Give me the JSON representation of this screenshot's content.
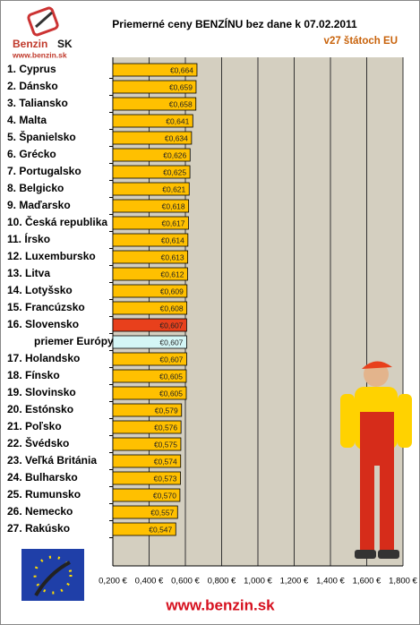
{
  "chart_data": {
    "type": "bar",
    "orientation": "horizontal",
    "title": "Priemerné ceny BENZÍNU bez dane k 07.02.2011",
    "subtitle": "v27 štátoch EU",
    "logo_text": "Benzin",
    "logo_suffix": "SK",
    "logo_url": "www.benzin.sk",
    "footer": "www.benzin.sk",
    "categories": [
      "1. Cyprus",
      "2. Dánsko",
      "3. Taliansko",
      "4. Malta",
      "5. Španielsko",
      "6. Grécko",
      "7. Portugalsko",
      "8. Belgicko",
      "9. Maďarsko",
      "10. Česká republika",
      "11. Írsko",
      "12. Luxembursko",
      "13. Litva",
      "14. Lotyšsko",
      "15. Francúzsko",
      "16. Slovensko",
      "priemer Európy",
      "17. Holandsko",
      "18. Fínsko",
      "19. Slovinsko",
      "20. Estónsko",
      "21. Poľsko",
      "22. Švédsko",
      "23. Veľká Británia",
      "24. Bulharsko",
      "25. Rumunsko",
      "26. Nemecko",
      "27. Rakúsko"
    ],
    "values": [
      0.664,
      0.659,
      0.658,
      0.641,
      0.634,
      0.626,
      0.625,
      0.621,
      0.618,
      0.617,
      0.614,
      0.613,
      0.612,
      0.609,
      0.608,
      0.607,
      0.607,
      0.607,
      0.605,
      0.605,
      0.579,
      0.576,
      0.575,
      0.574,
      0.573,
      0.57,
      0.557,
      0.547
    ],
    "value_labels": [
      "€0,664",
      "€0,659",
      "€0,658",
      "€0,641",
      "€0,634",
      "€0,626",
      "€0,625",
      "€0,621",
      "€0,618",
      "€0,617",
      "€0,614",
      "€0,613",
      "€0,612",
      "€0,609",
      "€0,608",
      "€0,607",
      "€0,607",
      "€0,607",
      "€0,605",
      "€0,605",
      "€0,579",
      "€0,576",
      "€0,575",
      "€0,574",
      "€0,573",
      "€0,570",
      "€0,557",
      "€0,547"
    ],
    "color": "#ffc000",
    "highlight_color": "#e8401c",
    "average_color": "#d4f6f6",
    "highlight_index": 15,
    "average_index": 16,
    "xlim": [
      0.2,
      1.8
    ],
    "xticks": [
      {
        "value": 0.2,
        "label": "0,200 €"
      },
      {
        "value": 0.4,
        "label": "0,400 €"
      },
      {
        "value": 0.6,
        "label": "0,600 €"
      },
      {
        "value": 0.8,
        "label": "0,800 €"
      },
      {
        "value": 1.0,
        "label": "1,000 €"
      },
      {
        "value": 1.2,
        "label": "1,200 €"
      },
      {
        "value": 1.4,
        "label": "1,400 €"
      },
      {
        "value": 1.6,
        "label": "1,600 €"
      },
      {
        "value": 1.8,
        "label": "1,800 €"
      }
    ],
    "grid": true
  }
}
